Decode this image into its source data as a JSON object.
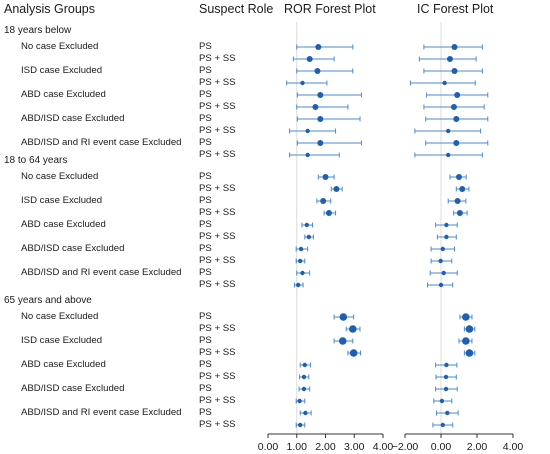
{
  "headers": {
    "analysis_groups": "Analysis Groups",
    "suspect_role": "Suspect Role",
    "ror_title": "ROR Forest Plot",
    "ic_title": "IC Forest Plot"
  },
  "groups": [
    {
      "label": "18 years below",
      "subgroups": [
        {
          "label": "No case Excluded"
        },
        {
          "label": "ISD case Excluded"
        },
        {
          "label": "ABD case Excluded"
        },
        {
          "label": "ABD/ISD case Excluded"
        },
        {
          "label": "ABD/ISD and RI event case Excluded"
        }
      ]
    },
    {
      "label": "18 to 64 years",
      "subgroups": [
        {
          "label": "No case Excluded"
        },
        {
          "label": "ISD case Excluded"
        },
        {
          "label": "ABD case Excluded"
        },
        {
          "label": "ABD/ISD case Excluded"
        },
        {
          "label": "ABD/ISD and RI event case Excluded"
        }
      ]
    },
    {
      "label": "65 years and above",
      "subgroups": [
        {
          "label": "No case Excluded"
        },
        {
          "label": "ISD case Excluded"
        },
        {
          "label": "ABD case Excluded"
        },
        {
          "label": "ABD/ISD case Excluded"
        },
        {
          "label": "ABD/ISD and RI event case Excluded"
        }
      ]
    }
  ],
  "roles": [
    "PS",
    "PS + SS"
  ],
  "colors": {
    "marker": "#1f5fb0",
    "whisker": "#4a8ad4",
    "refline": "#dcdcdc",
    "axis": "#333333"
  },
  "chart_data": [
    {
      "type": "forest",
      "title": "ROR Forest Plot",
      "xlim": [
        0,
        4
      ],
      "ticks": [
        0,
        1,
        2,
        3,
        4
      ],
      "tick_labels": [
        "0.00",
        "1.00",
        "2.00",
        "3.00",
        "4.00"
      ],
      "reference_line": 1,
      "rows": [
        {
          "est": 1.75,
          "lo": 1.0,
          "hi": 2.95,
          "w": 2
        },
        {
          "est": 1.45,
          "lo": 0.88,
          "hi": 2.3,
          "w": 2
        },
        {
          "est": 1.72,
          "lo": 1.0,
          "hi": 2.95,
          "w": 2
        },
        {
          "est": 1.2,
          "lo": 0.65,
          "hi": 2.05,
          "w": 1
        },
        {
          "est": 1.82,
          "lo": 1.02,
          "hi": 3.25,
          "w": 2
        },
        {
          "est": 1.65,
          "lo": 1.0,
          "hi": 2.78,
          "w": 2
        },
        {
          "est": 1.82,
          "lo": 1.02,
          "hi": 3.2,
          "w": 2
        },
        {
          "est": 1.38,
          "lo": 0.75,
          "hi": 2.35,
          "w": 1
        },
        {
          "est": 1.82,
          "lo": 1.02,
          "hi": 3.25,
          "w": 2
        },
        {
          "est": 1.38,
          "lo": 0.75,
          "hi": 2.48,
          "w": 1
        },
        {
          "est": 2.0,
          "lo": 1.75,
          "hi": 2.3,
          "w": 2
        },
        {
          "est": 2.38,
          "lo": 2.2,
          "hi": 2.58,
          "w": 2
        },
        {
          "est": 1.92,
          "lo": 1.7,
          "hi": 2.18,
          "w": 2
        },
        {
          "est": 2.12,
          "lo": 1.95,
          "hi": 2.35,
          "w": 2
        },
        {
          "est": 1.35,
          "lo": 1.18,
          "hi": 1.55,
          "w": 1
        },
        {
          "est": 1.42,
          "lo": 1.28,
          "hi": 1.58,
          "w": 1
        },
        {
          "est": 1.15,
          "lo": 0.98,
          "hi": 1.38,
          "w": 1
        },
        {
          "est": 1.12,
          "lo": 0.98,
          "hi": 1.28,
          "w": 1
        },
        {
          "est": 1.2,
          "lo": 1.0,
          "hi": 1.45,
          "w": 1
        },
        {
          "est": 1.05,
          "lo": 0.92,
          "hi": 1.22,
          "w": 1
        },
        {
          "est": 2.62,
          "lo": 2.3,
          "hi": 2.98,
          "w": 3
        },
        {
          "est": 2.95,
          "lo": 2.72,
          "hi": 3.2,
          "w": 3
        },
        {
          "est": 2.6,
          "lo": 2.3,
          "hi": 2.95,
          "w": 3
        },
        {
          "est": 2.98,
          "lo": 2.78,
          "hi": 3.22,
          "w": 3
        },
        {
          "est": 1.28,
          "lo": 1.12,
          "hi": 1.48,
          "w": 1
        },
        {
          "est": 1.25,
          "lo": 1.1,
          "hi": 1.42,
          "w": 1
        },
        {
          "est": 1.25,
          "lo": 1.08,
          "hi": 1.45,
          "w": 1
        },
        {
          "est": 1.1,
          "lo": 0.98,
          "hi": 1.28,
          "w": 1
        },
        {
          "est": 1.3,
          "lo": 1.12,
          "hi": 1.5,
          "w": 1
        },
        {
          "est": 1.12,
          "lo": 0.98,
          "hi": 1.28,
          "w": 1
        }
      ]
    },
    {
      "type": "forest",
      "title": "IC Forest Plot",
      "xlim": [
        -2,
        4
      ],
      "ticks": [
        -2,
        0,
        2,
        4
      ],
      "tick_labels": [
        "−2.00",
        "0.00",
        "2.00",
        "4.00"
      ],
      "reference_line": 0,
      "rows": [
        {
          "est": 0.75,
          "lo": -0.95,
          "hi": 2.3,
          "w": 2
        },
        {
          "est": 0.5,
          "lo": -1.2,
          "hi": 1.95,
          "w": 2
        },
        {
          "est": 0.75,
          "lo": -0.95,
          "hi": 2.3,
          "w": 2
        },
        {
          "est": 0.2,
          "lo": -1.7,
          "hi": 1.9,
          "w": 1
        },
        {
          "est": 0.9,
          "lo": -0.8,
          "hi": 2.6,
          "w": 2
        },
        {
          "est": 0.72,
          "lo": -0.95,
          "hi": 2.4,
          "w": 2
        },
        {
          "est": 0.85,
          "lo": -0.85,
          "hi": 2.6,
          "w": 2
        },
        {
          "est": 0.4,
          "lo": -1.45,
          "hi": 2.2,
          "w": 1
        },
        {
          "est": 0.85,
          "lo": -0.85,
          "hi": 2.6,
          "w": 2
        },
        {
          "est": 0.4,
          "lo": -1.45,
          "hi": 2.3,
          "w": 1
        },
        {
          "est": 1.0,
          "lo": 0.5,
          "hi": 1.4,
          "w": 2
        },
        {
          "est": 1.18,
          "lo": 0.85,
          "hi": 1.55,
          "w": 2
        },
        {
          "est": 0.92,
          "lo": 0.4,
          "hi": 1.38,
          "w": 2
        },
        {
          "est": 1.05,
          "lo": 0.7,
          "hi": 1.45,
          "w": 2
        },
        {
          "est": 0.3,
          "lo": -0.3,
          "hi": 0.9,
          "w": 1
        },
        {
          "est": 0.3,
          "lo": -0.2,
          "hi": 0.85,
          "w": 1
        },
        {
          "est": 0.1,
          "lo": -0.55,
          "hi": 0.75,
          "w": 1
        },
        {
          "est": -0.02,
          "lo": -0.55,
          "hi": 0.6,
          "w": 1
        },
        {
          "est": 0.15,
          "lo": -0.6,
          "hi": 0.9,
          "w": 1
        },
        {
          "est": 0.0,
          "lo": -0.75,
          "hi": 0.65,
          "w": 1
        },
        {
          "est": 1.38,
          "lo": 1.05,
          "hi": 1.72,
          "w": 3
        },
        {
          "est": 1.58,
          "lo": 1.3,
          "hi": 1.88,
          "w": 3
        },
        {
          "est": 1.38,
          "lo": 1.0,
          "hi": 1.72,
          "w": 3
        },
        {
          "est": 1.58,
          "lo": 1.3,
          "hi": 1.88,
          "w": 3
        },
        {
          "est": 0.3,
          "lo": -0.3,
          "hi": 0.88,
          "w": 1
        },
        {
          "est": 0.28,
          "lo": -0.28,
          "hi": 0.85,
          "w": 1
        },
        {
          "est": 0.28,
          "lo": -0.3,
          "hi": 0.9,
          "w": 1
        },
        {
          "est": 0.05,
          "lo": -0.4,
          "hi": 0.6,
          "w": 1
        },
        {
          "est": 0.35,
          "lo": -0.25,
          "hi": 0.95,
          "w": 1
        },
        {
          "est": 0.1,
          "lo": -0.45,
          "hi": 0.65,
          "w": 1
        }
      ]
    }
  ]
}
